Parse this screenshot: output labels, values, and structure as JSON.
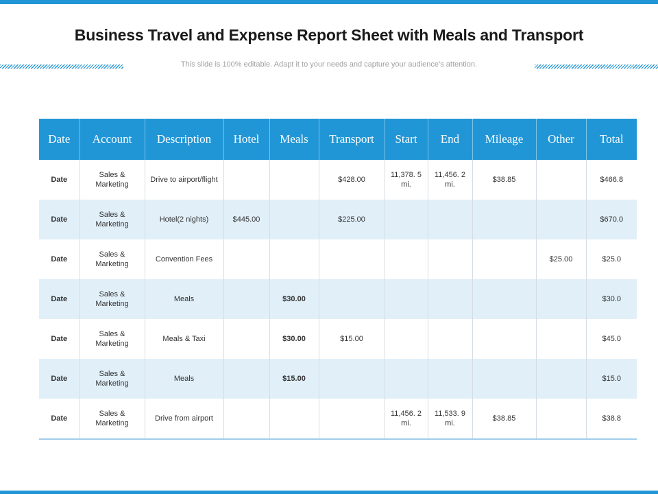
{
  "title": "Business Travel and Expense Report Sheet with Meals and Transport",
  "subtitle": "This slide is 100% editable. Adapt it to your needs and capture your audience’s attention.",
  "colors": {
    "accent": "#2196d6",
    "alt_row": "#e1eff8"
  },
  "table": {
    "headers": [
      "Date",
      "Account",
      "Description",
      "Hotel",
      "Meals",
      "Transport",
      "Start",
      "End",
      "Mileage",
      "Other",
      "Total"
    ],
    "rows": [
      {
        "date": "Date",
        "account": "Sales & Marketing",
        "description": "Drive to airport/flight",
        "hotel": "",
        "meals": "",
        "transport": "$428.00",
        "start": "11,378. 5 mi.",
        "end": "11,456. 2 mi.",
        "mileage": "$38.85",
        "other": "",
        "total": "$466.8"
      },
      {
        "date": "Date",
        "account": "Sales & Marketing",
        "description": "Hotel(2 nights)",
        "hotel": "$445.00",
        "meals": "",
        "transport": "$225.00",
        "start": "",
        "end": "",
        "mileage": "",
        "other": "",
        "total": "$670.0"
      },
      {
        "date": "Date",
        "account": "Sales & Marketing",
        "description": "Convention Fees",
        "hotel": "",
        "meals": "",
        "transport": "",
        "start": "",
        "end": "",
        "mileage": "",
        "other": "$25.00",
        "total": "$25.0"
      },
      {
        "date": "Date",
        "account": "Sales & Marketing",
        "description": "Meals",
        "hotel": "",
        "meals": "$30.00",
        "transport": "",
        "start": "",
        "end": "",
        "mileage": "",
        "other": "",
        "total": "$30.0"
      },
      {
        "date": "Date",
        "account": "Sales & Marketing",
        "description": "Meals & Taxi",
        "hotel": "",
        "meals": "$30.00",
        "transport": "$15.00",
        "start": "",
        "end": "",
        "mileage": "",
        "other": "",
        "total": "$45.0"
      },
      {
        "date": "Date",
        "account": "Sales & Marketing",
        "description": "Meals",
        "hotel": "",
        "meals": "$15.00",
        "transport": "",
        "start": "",
        "end": "",
        "mileage": "",
        "other": "",
        "total": "$15.0"
      },
      {
        "date": "Date",
        "account": "Sales & Marketing",
        "description": "Drive from airport",
        "hotel": "",
        "meals": "",
        "transport": "",
        "start": "11,456. 2 mi.",
        "end": "11,533. 9 mi.",
        "mileage": "$38.85",
        "other": "",
        "total": "$38.8"
      }
    ]
  }
}
